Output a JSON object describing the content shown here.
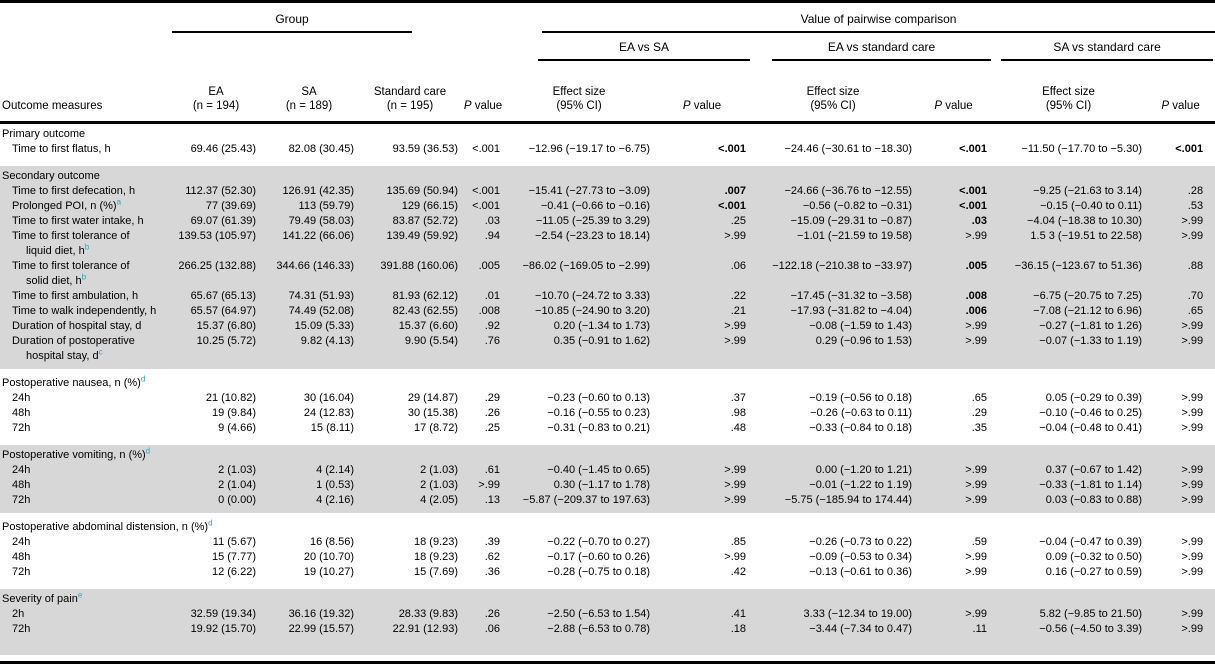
{
  "colors": {
    "band_gray": "#d7d7d7",
    "footnote_marker": "#2aa3c9",
    "rule": "#000000",
    "text": "#000000"
  },
  "table": {
    "top_headers": {
      "group": "Group",
      "pairwise": "Value of pairwise comparison"
    },
    "pairwise_groups": [
      "EA vs SA",
      "EA vs standard care",
      "SA vs standard care"
    ],
    "col_headers": {
      "outcome": "Outcome measures",
      "ea": [
        "EA",
        "(n = 194)"
      ],
      "sa": [
        "SA",
        "(n = 189)"
      ],
      "std": [
        "Standard care",
        "(n = 195)"
      ],
      "effect": [
        "Effect size",
        "(95% CI)"
      ],
      "p_label": "P",
      "value_label": "value"
    },
    "sections": [
      {
        "shade": "white",
        "header": {
          "text": "Primary outcome"
        },
        "rows": [
          {
            "label": {
              "lines": [
                "Time to first flatus, h"
              ]
            },
            "values": [
              "69.46 (25.43)",
              "82.08 (30.45)",
              "93.59 (36.53)",
              "<.001",
              "−12.96 (−19.17 to −6.75)",
              "<.001",
              "−24.46 (−30.61 to −18.30)",
              "<.001",
              "−11.50 (−17.70 to −5.30)",
              "<.001"
            ],
            "bold": [
              5,
              7,
              9
            ]
          }
        ]
      },
      {
        "shade": "gray",
        "header": {
          "text": "Secondary outcome"
        },
        "rows": [
          {
            "label": {
              "lines": [
                "Time to first defecation, h"
              ]
            },
            "values": [
              "112.37 (52.30)",
              "126.91 (42.35)",
              "135.69 (50.94)",
              "<.001",
              "−15.41 (−27.73 to −3.09)",
              ".007",
              "−24.66 (−36.76 to −12.55)",
              "<.001",
              "−9.25 (−21.63 to 3.14)",
              ".28"
            ],
            "bold": [
              5,
              7
            ]
          },
          {
            "label": {
              "lines": [
                "Prolonged POI, n (%)"
              ],
              "sup": "a"
            },
            "values": [
              "77 (39.69)",
              "113 (59.79)",
              "129 (66.15)",
              "<.001",
              "−0.41 (−0.66 to −0.16)",
              "<.001",
              "−0.56 (−0.82 to −0.31)",
              "<.001",
              "−0.15 (−0.40 to 0.11)",
              ".53"
            ],
            "bold": [
              5,
              7
            ]
          },
          {
            "label": {
              "lines": [
                "Time to first water intake, h"
              ]
            },
            "values": [
              "69.07 (61.39)",
              "79.49 (58.03)",
              "83.87 (52.72)",
              ".03",
              "−11.05 (−25.39 to 3.29)",
              ".25",
              "−15.09 (−29.31 to −0.87)",
              ".03",
              "−4.04 (−18.38 to 10.30)",
              ">.99"
            ],
            "bold": [
              7
            ]
          },
          {
            "label": {
              "lines": [
                "Time to first tolerance of",
                "liquid diet, h"
              ],
              "sup": "b"
            },
            "values": [
              "139.53 (105.97)",
              "141.22 (66.06)",
              "139.49 (59.92)",
              ".94",
              "−2.54 (−23.23 to 18.14)",
              ">.99",
              "−1.01 (−21.59 to 19.58)",
              ">.99",
              "1.5 3 (−19.51 to 22.58)",
              ">.99"
            ],
            "bold": []
          },
          {
            "label": {
              "lines": [
                "Time to first tolerance of",
                "solid diet, h"
              ],
              "sup": "b"
            },
            "values": [
              "266.25 (132.88)",
              "344.66 (146.33)",
              "391.88 (160.06)",
              ".005",
              "−86.02 (−169.05 to −2.99)",
              ".06",
              "−122.18 (−210.38 to −33.97)",
              ".005",
              "−36.15 (−123.67 to 51.36)",
              ".88"
            ],
            "bold": [
              7
            ]
          },
          {
            "label": {
              "lines": [
                "Time to first ambulation, h"
              ]
            },
            "values": [
              "65.67 (65.13)",
              "74.31 (51.93)",
              "81.93 (62.12)",
              ".01",
              "−10.70 (−24.72 to 3.33)",
              ".22",
              "−17.45 (−31.32 to −3.58)",
              ".008",
              "−6.75 (−20.75 to 7.25)",
              ".70"
            ],
            "bold": [
              7
            ]
          },
          {
            "label": {
              "lines": [
                "Time to walk independently, h"
              ]
            },
            "values": [
              "65.57 (64.97)",
              "74.49 (52.08)",
              "82.43 (62.55)",
              ".008",
              "−10.85 (−24.90 to 3.20)",
              ".21",
              "−17.93 (−31.82 to −4.04)",
              ".006",
              "−7.08 (−21.12 to 6.96)",
              ".65"
            ],
            "bold": [
              7
            ]
          },
          {
            "label": {
              "lines": [
                "Duration of hospital stay, d"
              ]
            },
            "values": [
              "15.37 (6.80)",
              "15.09 (5.33)",
              "15.37 (6.60)",
              ".92",
              "0.20 (−1.34 to 1.73)",
              ">.99",
              "−0.08 (−1.59 to 1.43)",
              ">.99",
              "−0.27 (−1.81 to 1.26)",
              ">.99"
            ],
            "bold": []
          },
          {
            "label": {
              "lines": [
                "Duration of postoperative",
                "hospital stay, d"
              ],
              "sup": "c"
            },
            "values": [
              "10.25 (5.72)",
              "9.82 (4.13)",
              "9.90 (5.54)",
              ".76",
              "0.35 (−0.91 to 1.62)",
              ">.99",
              "0.29 (−0.96 to 1.53)",
              ">.99",
              "−0.07 (−1.33 to 1.19)",
              ">.99"
            ],
            "bold": []
          }
        ]
      },
      {
        "shade": "white",
        "header": {
          "text": "Postoperative nausea, n (%)",
          "sup": "d"
        },
        "rows": [
          {
            "label": {
              "lines": [
                "24h"
              ]
            },
            "values": [
              "21 (10.82)",
              "30 (16.04)",
              "29 (14.87)",
              ".29",
              "−0.23 (−0.60 to 0.13)",
              ".37",
              "−0.19 (−0.56 to 0.18)",
              ".65",
              "0.05 (−0.29 to 0.39)",
              ">.99"
            ],
            "bold": []
          },
          {
            "label": {
              "lines": [
                "48h"
              ]
            },
            "values": [
              "19 (9.84)",
              "24 (12.83)",
              "30 (15.38)",
              ".26",
              "−0.16 (−0.55 to 0.23)",
              ".98",
              "−0.26 (−0.63 to 0.11)",
              ".29",
              "−0.10 (−0.46 to 0.25)",
              ">.99"
            ],
            "bold": []
          },
          {
            "label": {
              "lines": [
                "72h"
              ]
            },
            "values": [
              "9 (4.66)",
              "15 (8.11)",
              "17 (8.72)",
              ".25",
              "−0.31 (−0.83 to 0.21)",
              ".48",
              "−0.33 (−0.84 to 0.18)",
              ".35",
              "−0.04 (−0.48 to 0.41)",
              ">.99"
            ],
            "bold": []
          }
        ]
      },
      {
        "shade": "gray",
        "header": {
          "text": "Postoperative vomiting, n (%)",
          "sup": "d"
        },
        "rows": [
          {
            "label": {
              "lines": [
                "24h"
              ]
            },
            "values": [
              "2 (1.03)",
              "4 (2.14)",
              "2 (1.03)",
              ".61",
              "−0.40 (−1.45 to 0.65)",
              ">.99",
              "0.00 (−1.20 to 1.21)",
              ">.99",
              "0.37 (−0.67 to 1.42)",
              ">.99"
            ],
            "bold": []
          },
          {
            "label": {
              "lines": [
                "48h"
              ]
            },
            "values": [
              "2 (1.04)",
              "1 (0.53)",
              "2 (1.03)",
              ">.99",
              "0.30 (−1.17 to 1.78)",
              ">.99",
              "−0.01 (−1.22 to 1.19)",
              ">.99",
              "−0.33 (−1.81 to 1.14)",
              ">.99"
            ],
            "bold": []
          },
          {
            "label": {
              "lines": [
                "72h"
              ]
            },
            "values": [
              "0 (0.00)",
              "4 (2.16)",
              "4 (2.05)",
              ".13",
              "−5.87 (−209.37 to 197.63)",
              ">.99",
              "−5.75 (−185.94 to 174.44)",
              ">.99",
              "0.03 (−0.83 to 0.88)",
              ">.99"
            ],
            "bold": []
          }
        ]
      },
      {
        "shade": "white",
        "header": {
          "text": "Postoperative abdominal distension, n (%)",
          "sup": "d"
        },
        "rows": [
          {
            "label": {
              "lines": [
                "24h"
              ]
            },
            "values": [
              "11 (5.67)",
              "16 (8.56)",
              "18 (9.23)",
              ".39",
              "−0.22 (−0.70 to 0.27)",
              ".85",
              "−0.26 (−0.73 to 0.22)",
              ".59",
              "−0.04 (−0.47 to 0.39)",
              ">.99"
            ],
            "bold": []
          },
          {
            "label": {
              "lines": [
                "48h"
              ]
            },
            "values": [
              "15 (7.77)",
              "20 (10.70)",
              "18 (9.23)",
              ".62",
              "−0.17 (−0.60 to 0.26)",
              ">.99",
              "−0.09 (−0.53 to 0.34)",
              ">.99",
              "0.09 (−0.32 to 0.50)",
              ">.99"
            ],
            "bold": []
          },
          {
            "label": {
              "lines": [
                "72h"
              ]
            },
            "values": [
              "12 (6.22)",
              "19 (10.27)",
              "15 (7.69)",
              ".36",
              "−0.28 (−0.75 to 0.18)",
              ".42",
              "−0.13 (−0.61 to 0.36)",
              ">.99",
              "0.16 (−0.27 to 0.59)",
              ">.99"
            ],
            "bold": []
          }
        ]
      },
      {
        "shade": "gray",
        "header": {
          "text": "Severity of pain",
          "sup": "e"
        },
        "rows": [
          {
            "label": {
              "lines": [
                "2h"
              ]
            },
            "values": [
              "32.59 (19.34)",
              "36.16 (19.32)",
              "28.33 (9.83)",
              ".26",
              "−2.50 (−6.53 to 1.54)",
              ".41",
              "3.33 (−12.34 to 19.00)",
              ">.99",
              "5.82 (−9.85 to 21.50)",
              ">.99"
            ],
            "bold": []
          },
          {
            "label": {
              "lines": [
                "72h"
              ]
            },
            "values": [
              "19.92 (15.70)",
              "22.99 (15.57)",
              "22.91 (12.93)",
              ".06",
              "−2.88 (−6.53 to 0.78)",
              ".18",
              "−3.44 (−7.34 to 0.47)",
              ".11",
              "−0.56 (−4.50 to 3.39)",
              ">.99"
            ],
            "bold": []
          }
        ]
      }
    ]
  }
}
